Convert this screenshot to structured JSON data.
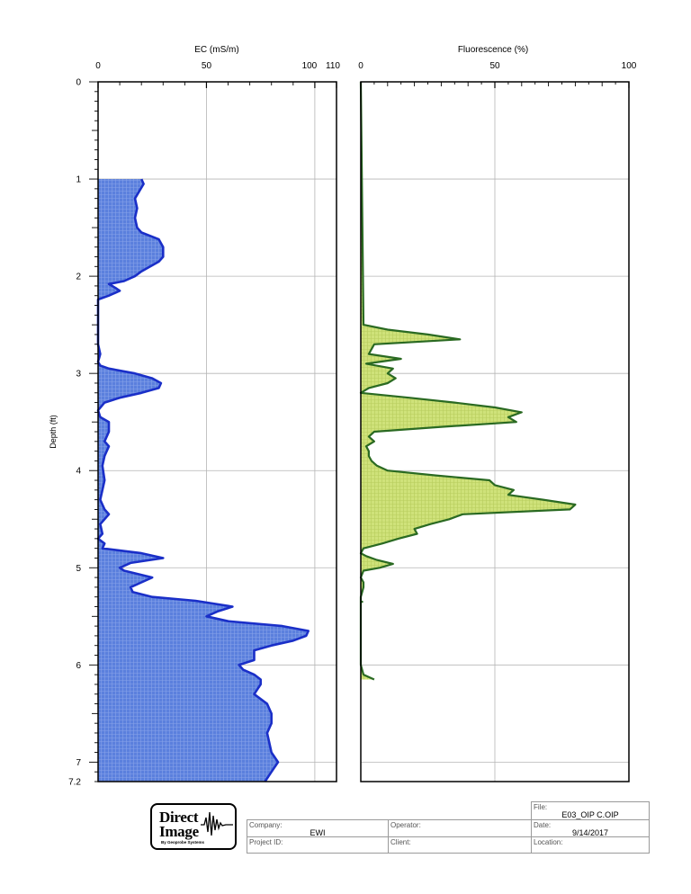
{
  "chart_data": [
    {
      "type": "area",
      "title": "EC (mS/m)",
      "ylabel": "Depth (ft)",
      "xlim": [
        0,
        110
      ],
      "ylim": [
        0,
        7.2
      ],
      "x_ticks": [
        "0",
        "50",
        "100",
        "110"
      ],
      "y_ticks": [
        "0",
        "1",
        "2",
        "3",
        "4",
        "5",
        "6",
        "7",
        "7.2"
      ],
      "fill_color": "#5a7fde",
      "line_color": "#1a2fc8",
      "grid": true,
      "series": [
        {
          "depth": [
            1.0,
            1.05,
            1.2,
            1.3,
            1.4,
            1.5,
            1.55,
            1.62,
            1.7,
            1.8,
            1.85,
            1.95,
            2.0,
            2.05,
            2.08,
            2.12,
            2.15,
            2.2,
            2.24,
            2.3,
            2.5,
            2.7,
            2.8,
            2.88,
            2.92,
            2.95,
            3.0,
            3.05,
            3.1,
            3.15,
            3.2,
            3.25,
            3.3,
            3.38,
            3.45,
            3.5,
            3.6,
            3.7,
            3.75,
            3.85,
            3.95,
            4.1,
            4.2,
            4.3,
            4.4,
            4.45,
            4.5,
            4.55,
            4.65,
            4.7,
            4.75,
            4.8,
            4.85,
            4.9,
            4.95,
            5.0,
            5.03,
            5.1,
            5.15,
            5.2,
            5.25,
            5.3,
            5.34,
            5.4,
            5.45,
            5.5,
            5.55,
            5.6,
            5.65,
            5.7,
            5.75,
            5.8,
            5.85,
            5.9,
            5.95,
            6.0,
            6.05,
            6.1,
            6.15,
            6.2,
            6.3,
            6.4,
            6.5,
            6.6,
            6.7,
            6.8,
            6.9,
            7.0,
            7.1,
            7.2
          ],
          "ec": [
            20,
            21,
            17,
            18,
            17,
            18,
            20,
            28,
            30,
            30,
            28,
            20,
            17,
            12,
            5,
            8,
            10,
            5,
            0,
            0,
            0,
            0,
            1,
            0,
            1,
            5,
            17,
            25,
            29,
            28,
            20,
            10,
            3,
            0,
            1,
            5,
            5,
            3,
            5,
            3,
            2,
            3,
            2,
            1,
            3,
            5,
            3,
            1,
            2,
            0,
            3,
            2,
            20,
            30,
            15,
            10,
            12,
            25,
            20,
            15,
            16,
            25,
            45,
            62,
            55,
            50,
            60,
            85,
            97,
            96,
            90,
            80,
            72,
            72,
            72,
            65,
            67,
            72,
            75,
            75,
            72,
            78,
            80,
            80,
            78,
            79,
            80,
            83,
            80,
            77
          ]
        }
      ]
    },
    {
      "type": "area",
      "title": "Fluorescence (%)",
      "xlim": [
        0,
        100
      ],
      "ylim": [
        0,
        7.2
      ],
      "x_ticks": [
        "0",
        "50",
        "100"
      ],
      "fill_color": "#cfe27a",
      "line_color": "#2a6a22",
      "grid": true,
      "series": [
        {
          "depth": [
            0.0,
            2.5,
            2.55,
            2.6,
            2.65,
            2.7,
            2.8,
            2.85,
            2.9,
            2.95,
            3.0,
            3.05,
            3.1,
            3.15,
            3.2,
            3.25,
            3.3,
            3.35,
            3.4,
            3.45,
            3.5,
            3.55,
            3.6,
            3.65,
            3.7,
            3.75,
            3.8,
            3.85,
            3.9,
            3.95,
            4.0,
            4.05,
            4.1,
            4.15,
            4.2,
            4.25,
            4.3,
            4.35,
            4.4,
            4.45,
            4.5,
            4.55,
            4.6,
            4.65,
            4.7,
            4.75,
            4.8,
            4.85,
            4.88,
            4.92,
            4.96,
            5.0,
            5.03,
            5.1,
            5.15,
            5.2,
            5.3,
            6.0,
            6.1,
            6.15
          ],
          "fluor": [
            0,
            1,
            10,
            25,
            37,
            5,
            3,
            15,
            2,
            12,
            10,
            13,
            10,
            3,
            0,
            18,
            35,
            50,
            60,
            55,
            58,
            30,
            5,
            3,
            5,
            2,
            3,
            3,
            4,
            6,
            10,
            28,
            48,
            50,
            57,
            55,
            68,
            80,
            78,
            38,
            33,
            26,
            20,
            21,
            14,
            8,
            1,
            0,
            2,
            6,
            12,
            7,
            1,
            0,
            1,
            1,
            0,
            0,
            1,
            5
          ]
        }
      ]
    }
  ],
  "footer": {
    "logo_line1": "Direct",
    "logo_line2": "Image",
    "logo_sub": "By Geoprobe Systems",
    "labels": {
      "company": "Company:",
      "operator": "Operator:",
      "project_id": "Project ID:",
      "client": "Client:",
      "file": "File:",
      "date": "Date:",
      "location": "Location:"
    },
    "values": {
      "company": "EWI",
      "operator": "",
      "project_id": "",
      "client": "",
      "file": "E03_OIP C.OIP",
      "date": "9/14/2017",
      "location": ""
    }
  }
}
